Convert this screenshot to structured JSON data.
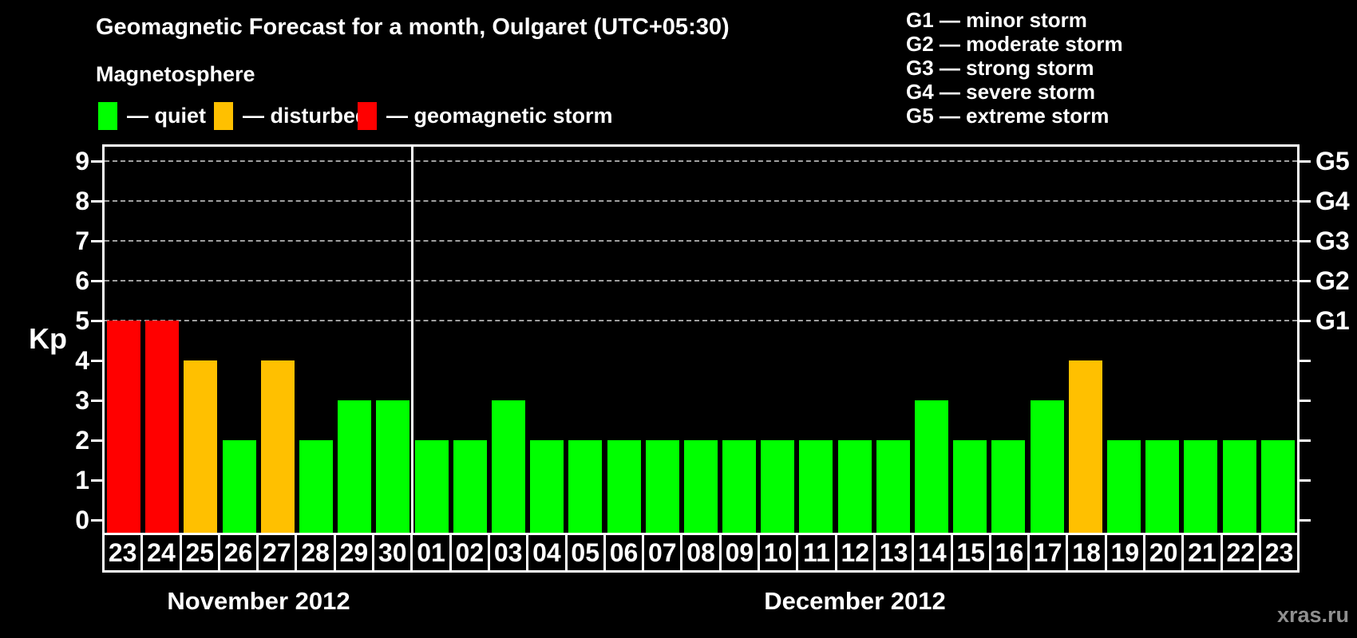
{
  "title": "Geomagnetic Forecast for a month, Oulgaret (UTC+05:30)",
  "subtitle": "Magnetosphere",
  "legend": {
    "items": [
      {
        "name": "quiet",
        "label": "— quiet",
        "color": "#00ff00"
      },
      {
        "name": "disturbed",
        "label": "— disturbed",
        "color": "#ffc000"
      },
      {
        "name": "storm",
        "label": "— geomagnetic storm",
        "color": "#ff0000"
      }
    ]
  },
  "g_legend": {
    "items": [
      "G1 — minor storm",
      "G2 — moderate storm",
      "G3 — strong storm",
      "G4 — severe storm",
      "G5 — extreme storm"
    ]
  },
  "watermark": "xras.ru",
  "chart_data": {
    "type": "bar",
    "ylabel": "Kp",
    "ylim": [
      0,
      9.4
    ],
    "yticks": [
      0,
      1,
      2,
      3,
      4,
      5,
      6,
      7,
      8,
      9
    ],
    "gridlines_at": [
      5,
      6,
      7,
      8,
      9
    ],
    "right_axis_labels": [
      {
        "kp": 5,
        "label": "G1"
      },
      {
        "kp": 6,
        "label": "G2"
      },
      {
        "kp": 7,
        "label": "G3"
      },
      {
        "kp": 8,
        "label": "G4"
      },
      {
        "kp": 9,
        "label": "G5"
      }
    ],
    "grid": "dashed horizontal at Kp 5-9",
    "legend_position": "top",
    "colors": {
      "quiet": "#00ff00",
      "disturbed": "#ffc000",
      "storm": "#ff0000"
    },
    "months": [
      {
        "key": "nov",
        "label": "November 2012",
        "days": [
          {
            "day": "23",
            "kp": 5,
            "status": "storm"
          },
          {
            "day": "24",
            "kp": 5,
            "status": "storm"
          },
          {
            "day": "25",
            "kp": 4,
            "status": "disturbed"
          },
          {
            "day": "26",
            "kp": 2,
            "status": "quiet"
          },
          {
            "day": "27",
            "kp": 4,
            "status": "disturbed"
          },
          {
            "day": "28",
            "kp": 2,
            "status": "quiet"
          },
          {
            "day": "29",
            "kp": 3,
            "status": "quiet"
          },
          {
            "day": "30",
            "kp": 3,
            "status": "quiet"
          }
        ]
      },
      {
        "key": "dec",
        "label": "December 2012",
        "days": [
          {
            "day": "01",
            "kp": 2,
            "status": "quiet"
          },
          {
            "day": "02",
            "kp": 2,
            "status": "quiet"
          },
          {
            "day": "03",
            "kp": 3,
            "status": "quiet"
          },
          {
            "day": "04",
            "kp": 2,
            "status": "quiet"
          },
          {
            "day": "05",
            "kp": 2,
            "status": "quiet"
          },
          {
            "day": "06",
            "kp": 2,
            "status": "quiet"
          },
          {
            "day": "07",
            "kp": 2,
            "status": "quiet"
          },
          {
            "day": "08",
            "kp": 2,
            "status": "quiet"
          },
          {
            "day": "09",
            "kp": 2,
            "status": "quiet"
          },
          {
            "day": "10",
            "kp": 2,
            "status": "quiet"
          },
          {
            "day": "11",
            "kp": 2,
            "status": "quiet"
          },
          {
            "day": "12",
            "kp": 2,
            "status": "quiet"
          },
          {
            "day": "13",
            "kp": 2,
            "status": "quiet"
          },
          {
            "day": "14",
            "kp": 3,
            "status": "quiet"
          },
          {
            "day": "15",
            "kp": 2,
            "status": "quiet"
          },
          {
            "day": "16",
            "kp": 2,
            "status": "quiet"
          },
          {
            "day": "17",
            "kp": 3,
            "status": "quiet"
          },
          {
            "day": "18",
            "kp": 4,
            "status": "disturbed"
          },
          {
            "day": "19",
            "kp": 2,
            "status": "quiet"
          },
          {
            "day": "20",
            "kp": 2,
            "status": "quiet"
          },
          {
            "day": "21",
            "kp": 2,
            "status": "quiet"
          },
          {
            "day": "22",
            "kp": 2,
            "status": "quiet"
          },
          {
            "day": "23",
            "kp": 2,
            "status": "quiet"
          }
        ]
      }
    ]
  }
}
